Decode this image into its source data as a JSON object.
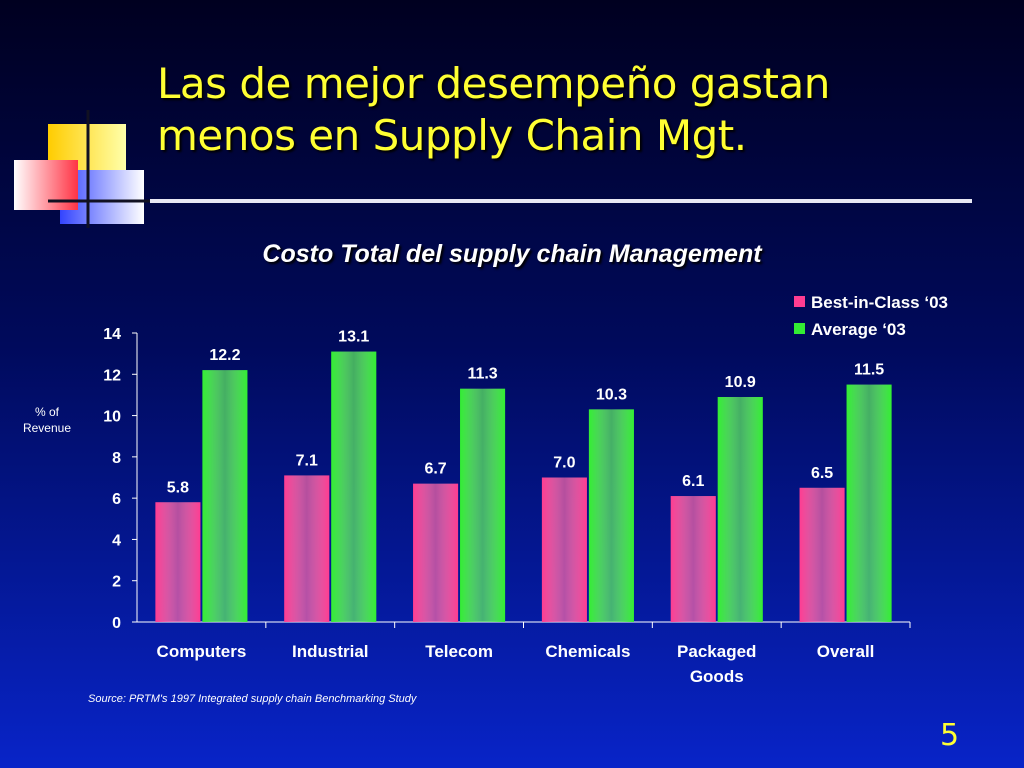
{
  "slide": {
    "title_line1": "Las de mejor desempeño gastan",
    "title_line2": "menos en Supply Chain Mgt.",
    "source": "Source:  PRTM's 1997 Integrated supply chain Benchmarking Study",
    "page_number": "5"
  },
  "colors": {
    "best_in_class": "#ff3d91",
    "average": "#33ee33",
    "title": "#ffff33",
    "background": "#0a1fb0"
  },
  "chart_data": {
    "type": "bar",
    "title": "Costo Total del supply chain Management",
    "ylabel": "% of\nRevenue",
    "xlabel": "",
    "ylim": [
      0,
      14
    ],
    "yticks": [
      0,
      2,
      4,
      6,
      8,
      10,
      12,
      14
    ],
    "grid": false,
    "legend_position": "top-right",
    "categories": [
      "Computers",
      "Industrial",
      "Telecom",
      "Chemicals",
      "Packaged\nGoods",
      "Overall"
    ],
    "series": [
      {
        "name": "Best-in-Class ‘03",
        "values": [
          5.8,
          7.1,
          6.7,
          7.0,
          6.1,
          6.5
        ],
        "labels": [
          "5.8",
          "7.1",
          "6.7",
          "7.0",
          "6.1",
          "6.5"
        ]
      },
      {
        "name": "Average ‘03",
        "values": [
          12.2,
          13.1,
          11.3,
          10.3,
          10.9,
          11.5
        ],
        "labels": [
          "12.2",
          "13.1",
          "11.3",
          "10.3",
          "10.9",
          "11.5"
        ]
      }
    ]
  }
}
